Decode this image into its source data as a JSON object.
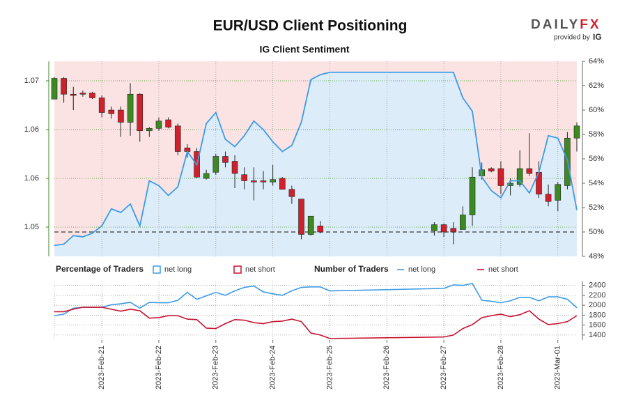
{
  "logo": {
    "name": "DAILY",
    "accent": "FX",
    "tagline": "provided by",
    "brand": "IG"
  },
  "chart_data": [
    {
      "type": "candlestick",
      "title": "EUR/USD Client Positioning",
      "subtitle": "IG Client Sentiment",
      "legend_title": "Percentage of Traders",
      "up_color": "#3d8a22",
      "down_color": "#d1202c",
      "x": [
        0.167,
        0.333,
        0.5,
        0.667,
        0.833,
        1,
        1.167,
        1.333,
        1.5,
        1.667,
        1.833,
        2,
        2.167,
        2.333,
        2.5,
        2.667,
        2.833,
        3,
        3.167,
        3.333,
        3.5,
        3.667,
        3.833,
        4,
        4.167,
        4.333,
        4.5,
        4.667,
        4.833,
        6.833,
        7,
        7.167,
        7.333,
        7.5,
        7.667,
        7.833,
        8,
        8.167,
        8.333,
        8.5,
        8.667,
        8.833,
        9,
        9.167,
        9.333
      ],
      "open": [
        1.0645,
        1.0662,
        1.0649,
        1.065,
        1.065,
        1.0646,
        1.0636,
        1.0636,
        1.0626,
        1.0649,
        1.0619,
        1.0621,
        1.0628,
        1.0623,
        1.0605,
        1.0602,
        1.058,
        1.0585,
        1.0598,
        1.0594,
        1.0583,
        1.0578,
        1.0578,
        1.0577,
        1.058,
        1.0571,
        1.0563,
        1.0534,
        1.0541,
        1.0537,
        1.0542,
        1.0539,
        1.0538,
        1.055,
        1.0582,
        1.0588,
        1.0588,
        1.0574,
        1.0575,
        1.0588,
        1.0585,
        1.0567,
        1.0562,
        1.0574,
        1.0613
      ],
      "high": [
        1.0663,
        1.0663,
        1.0655,
        1.0652,
        1.0651,
        1.0648,
        1.0639,
        1.0639,
        1.0658,
        1.065,
        1.0622,
        1.063,
        1.063,
        1.0625,
        1.0608,
        1.0605,
        1.0587,
        1.06,
        1.0602,
        1.0599,
        1.0589,
        1.0589,
        1.0586,
        1.0591,
        1.0581,
        1.0574,
        1.0563,
        1.0549,
        1.0545,
        1.0544,
        1.0543,
        1.0544,
        1.0557,
        1.0589,
        1.0593,
        1.0589,
        1.0594,
        1.058,
        1.0603,
        1.0617,
        1.0594,
        1.0575,
        1.0577,
        1.0618,
        1.0626
      ],
      "low": [
        1.0645,
        1.0642,
        1.0636,
        1.0647,
        1.0645,
        1.063,
        1.0629,
        1.0614,
        1.0615,
        1.061,
        1.0614,
        1.0619,
        1.0621,
        1.0599,
        1.0597,
        1.058,
        1.0579,
        1.0583,
        1.0589,
        1.0572,
        1.0571,
        1.0562,
        1.0571,
        1.0574,
        1.0571,
        1.0559,
        1.053,
        1.0533,
        1.0535,
        1.0533,
        1.0532,
        1.0526,
        1.0538,
        1.0541,
        1.0579,
        1.0585,
        1.0567,
        1.0566,
        1.0573,
        1.0582,
        1.0564,
        1.0557,
        1.0553,
        1.0571,
        1.0602
      ],
      "close": [
        1.0662,
        1.0649,
        1.0648,
        1.0649,
        1.0646,
        1.0634,
        1.0633,
        1.0626,
        1.0649,
        1.0619,
        1.0621,
        1.0627,
        1.0622,
        1.0602,
        1.0602,
        1.0581,
        1.0584,
        1.0598,
        1.0593,
        1.0584,
        1.0578,
        1.0577,
        1.0577,
        1.0579,
        1.0571,
        1.0565,
        1.0534,
        1.0549,
        1.0536,
        1.0542,
        1.0536,
        1.0536,
        1.055,
        1.0581,
        1.0587,
        1.0586,
        1.0574,
        1.0576,
        1.0588,
        1.0584,
        1.0567,
        1.0561,
        1.0575,
        1.0613,
        1.0623
      ],
      "xlim": [
        0.167,
        9.333
      ],
      "ylim": [
        1.0516,
        1.0676
      ],
      "yticks": [
        {
          "value": 1.054,
          "label": "1.05"
        },
        {
          "value": 1.058,
          "label": "1.06"
        },
        {
          "value": 1.062,
          "label": "1.06"
        },
        {
          "value": 1.066,
          "label": "1.07"
        }
      ],
      "y2lim": [
        48,
        64
      ],
      "y2ticks": [
        {
          "value": 48,
          "label": "48%"
        },
        {
          "value": 50,
          "label": "50%"
        },
        {
          "value": 52,
          "label": "52%"
        },
        {
          "value": 54,
          "label": "54%"
        },
        {
          "value": 56,
          "label": "56%"
        },
        {
          "value": 58,
          "label": "58%"
        },
        {
          "value": 60,
          "label": "60%"
        },
        {
          "value": 62,
          "label": "62%"
        },
        {
          "value": 64,
          "label": "64%"
        }
      ],
      "reference_line": 50,
      "series": [
        {
          "name": "net long",
          "color": "#3b9be6",
          "fill": "#dcedf9",
          "axis": "y2",
          "x": [
            0.167,
            0.333,
            0.5,
            0.667,
            0.833,
            1,
            1.167,
            1.333,
            1.5,
            1.667,
            1.833,
            2,
            2.167,
            2.333,
            2.5,
            2.667,
            2.833,
            3,
            3.167,
            3.333,
            3.5,
            3.667,
            3.833,
            4,
            4.167,
            4.333,
            4.5,
            4.667,
            4.833,
            5,
            7,
            7.167,
            7.333,
            7.5,
            7.667,
            7.833,
            8,
            8.167,
            8.333,
            8.5,
            8.667,
            8.833,
            9,
            9.167,
            9.333
          ],
          "values": [
            48.9,
            49.0,
            49.7,
            49.6,
            49.9,
            50.5,
            51.9,
            51.6,
            52.3,
            50.5,
            54.2,
            53.8,
            53.0,
            53.7,
            56.6,
            55.5,
            58.9,
            59.8,
            57.6,
            57.0,
            57.9,
            59.1,
            58.4,
            57.4,
            56.6,
            57.1,
            59.0,
            62.5,
            62.9,
            63.1,
            63.1,
            63.1,
            61.0,
            59.9,
            54.5,
            53.4,
            52.8,
            54.2,
            54.2,
            53.2,
            54.9,
            57.9,
            57.7,
            55.9,
            51.8
          ]
        },
        {
          "name": "net short",
          "color": "#c8102e",
          "fill": "#fbe3e3"
        }
      ]
    },
    {
      "type": "line",
      "legend_title": "Number of Traders",
      "xlim": [
        0.167,
        9.333
      ],
      "xticks": [
        {
          "value": 1,
          "label": "2023-Feb-21"
        },
        {
          "value": 2,
          "label": "2023-Feb-22"
        },
        {
          "value": 3,
          "label": "2023-Feb-23"
        },
        {
          "value": 4,
          "label": "2023-Feb-24"
        },
        {
          "value": 5,
          "label": "2023-Feb-25"
        },
        {
          "value": 6,
          "label": "2023-Feb-26"
        },
        {
          "value": 7,
          "label": "2023-Feb-27"
        },
        {
          "value": 8,
          "label": "2023-Feb-28"
        },
        {
          "value": 9,
          "label": "2023-Mar-01"
        }
      ],
      "ylim": [
        1300,
        2480
      ],
      "yticks": [
        1400,
        1600,
        1800,
        2000,
        2200,
        2400
      ],
      "x": [
        0.167,
        0.333,
        0.5,
        0.667,
        0.833,
        1,
        1.167,
        1.333,
        1.5,
        1.667,
        1.833,
        2,
        2.167,
        2.333,
        2.5,
        2.667,
        2.833,
        3,
        3.167,
        3.333,
        3.5,
        3.667,
        3.833,
        4,
        4.167,
        4.333,
        4.5,
        4.667,
        4.833,
        5,
        7,
        7.167,
        7.333,
        7.5,
        7.667,
        7.833,
        8,
        8.167,
        8.333,
        8.5,
        8.667,
        8.833,
        9,
        9.167,
        9.333
      ],
      "series": [
        {
          "name": "net long",
          "color": "#3b9be6",
          "values": [
            1790,
            1820,
            1940,
            1960,
            1960,
            1960,
            2010,
            2030,
            2060,
            1940,
            2060,
            2050,
            2050,
            2100,
            2260,
            2120,
            2190,
            2260,
            2200,
            2290,
            2360,
            2390,
            2270,
            2230,
            2200,
            2290,
            2360,
            2370,
            2370,
            2290,
            2340,
            2410,
            2400,
            2440,
            2100,
            2080,
            2050,
            2090,
            2160,
            2160,
            2090,
            2170,
            2170,
            2120,
            1950
          ]
        },
        {
          "name": "net short",
          "color": "#c8102e",
          "values": [
            1870,
            1870,
            1920,
            1960,
            1960,
            1960,
            1920,
            1880,
            1920,
            1890,
            1740,
            1750,
            1790,
            1790,
            1720,
            1710,
            1540,
            1530,
            1630,
            1710,
            1700,
            1650,
            1630,
            1670,
            1680,
            1720,
            1670,
            1440,
            1400,
            1330,
            1360,
            1400,
            1530,
            1610,
            1750,
            1790,
            1820,
            1770,
            1810,
            1890,
            1720,
            1610,
            1630,
            1670,
            1790
          ]
        }
      ]
    }
  ]
}
